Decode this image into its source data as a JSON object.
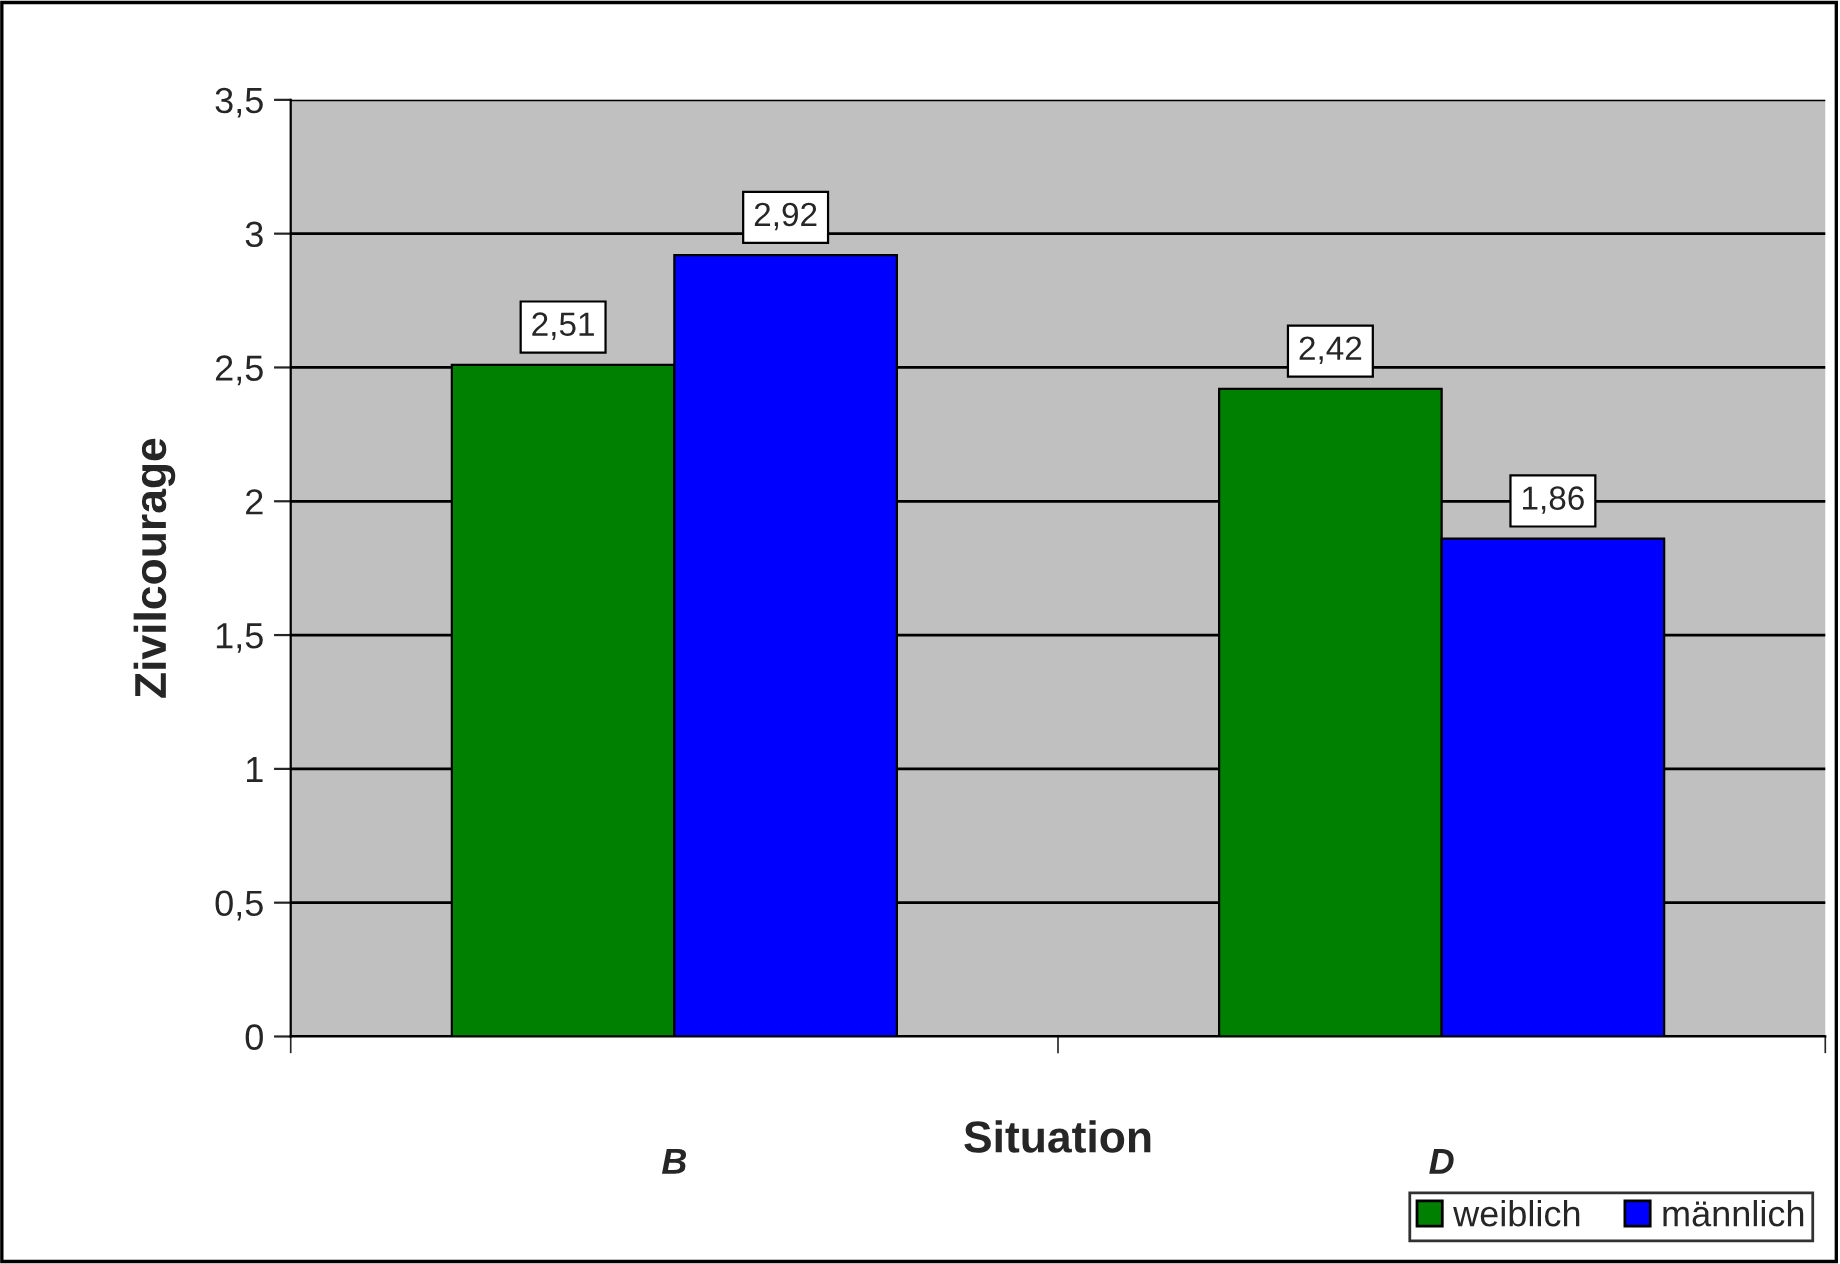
{
  "chart_data": {
    "type": "bar",
    "xlabel": "Situation",
    "ylabel": "Zivilcourage",
    "categories": [
      "B",
      "D"
    ],
    "series": [
      {
        "name": "weiblich",
        "color": "#008000",
        "values": [
          2.51,
          2.42
        ],
        "value_labels": [
          "2,51",
          "2,42"
        ]
      },
      {
        "name": "männlich",
        "color": "#0000ff",
        "values": [
          2.92,
          1.86
        ],
        "value_labels": [
          "2,92",
          "1,86"
        ]
      }
    ],
    "ylim": [
      0,
      3.5
    ],
    "yticks": [
      0,
      {
        "value": 0.5,
        "label": "0,5"
      },
      1,
      {
        "value": 1.5,
        "label": "1,5"
      },
      2,
      {
        "value": 2.5,
        "label": "2,5"
      },
      3,
      {
        "value": 3.5,
        "label": "3,5"
      }
    ],
    "grid": "y",
    "legend": "bottom right"
  }
}
